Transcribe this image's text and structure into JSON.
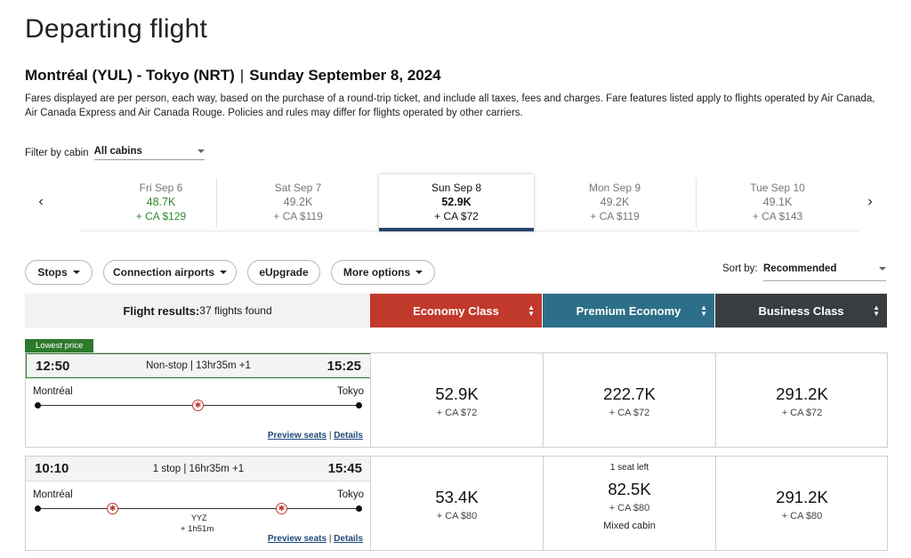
{
  "page_title": "Departing flight",
  "route": {
    "text": "Montréal (YUL) - Tokyo (NRT)",
    "separator": "|",
    "date": "Sunday September 8, 2024"
  },
  "fare_note": "Fares displayed are per person, each way, based on the purchase of a round-trip ticket, and include all taxes, fees and charges. Fare features listed apply to flights operated by Air Canada, Air Canada Express and Air Canada Rouge. Policies and rules may differ for flights operated by other carriers.",
  "filter": {
    "label": "Filter by cabin",
    "value": "All cabins"
  },
  "dates": [
    {
      "day": "Fri Sep 6",
      "points": "48.7K",
      "fee": "+ CA $129"
    },
    {
      "day": "Sat Sep 7",
      "points": "49.2K",
      "fee": "+ CA $119"
    },
    {
      "day": "Sun Sep 8",
      "points": "52.9K",
      "fee": "+ CA $72"
    },
    {
      "day": "Mon Sep 9",
      "points": "49.2K",
      "fee": "+ CA $119"
    },
    {
      "day": "Tue Sep 10",
      "points": "49.1K",
      "fee": "+ CA $143"
    }
  ],
  "filters": {
    "stops": "Stops",
    "connection_airports": "Connection airports",
    "eupgrade": "eUpgrade",
    "more_options": "More options"
  },
  "sort": {
    "label": "Sort by:",
    "value": "Recommended"
  },
  "results": {
    "label": "Flight results:",
    "count": "37 flights found"
  },
  "cabins": {
    "economy": "Economy Class",
    "premium": "Premium Economy",
    "business": "Business Class"
  },
  "lowest_tag": "Lowest price",
  "flights": [
    {
      "depart": "12:50",
      "arrive": "15:25",
      "summary": "Non-stop | 13hr35m +1",
      "origin": "Montréal",
      "destination": "Tokyo",
      "economy": {
        "points": "52.9K",
        "fee": "+ CA $72"
      },
      "premium": {
        "points": "222.7K",
        "fee": "+ CA $72"
      },
      "business": {
        "points": "291.2K",
        "fee": "+ CA $72"
      }
    },
    {
      "depart": "10:10",
      "arrive": "15:45",
      "summary": "1 stop | 16hr35m +1",
      "origin": "Montréal",
      "destination": "Tokyo",
      "stop_code": "YYZ",
      "stop_duration": "+ 1h51m",
      "economy": {
        "points": "53.4K",
        "fee": "+ CA $80"
      },
      "premium": {
        "note": "1 seat left",
        "points": "82.5K",
        "fee": "+ CA $80",
        "mixed": "Mixed cabin"
      },
      "business": {
        "points": "291.2K",
        "fee": "+ CA $80"
      }
    }
  ],
  "links": {
    "preview": "Preview seats",
    "sep": "|",
    "details": "Details"
  },
  "colors": {
    "economy": "#c0392b",
    "premium": "#2d6f88",
    "business": "#3a3d40",
    "accent_green": "#2c7a2c",
    "selected_bar": "#27466b"
  }
}
